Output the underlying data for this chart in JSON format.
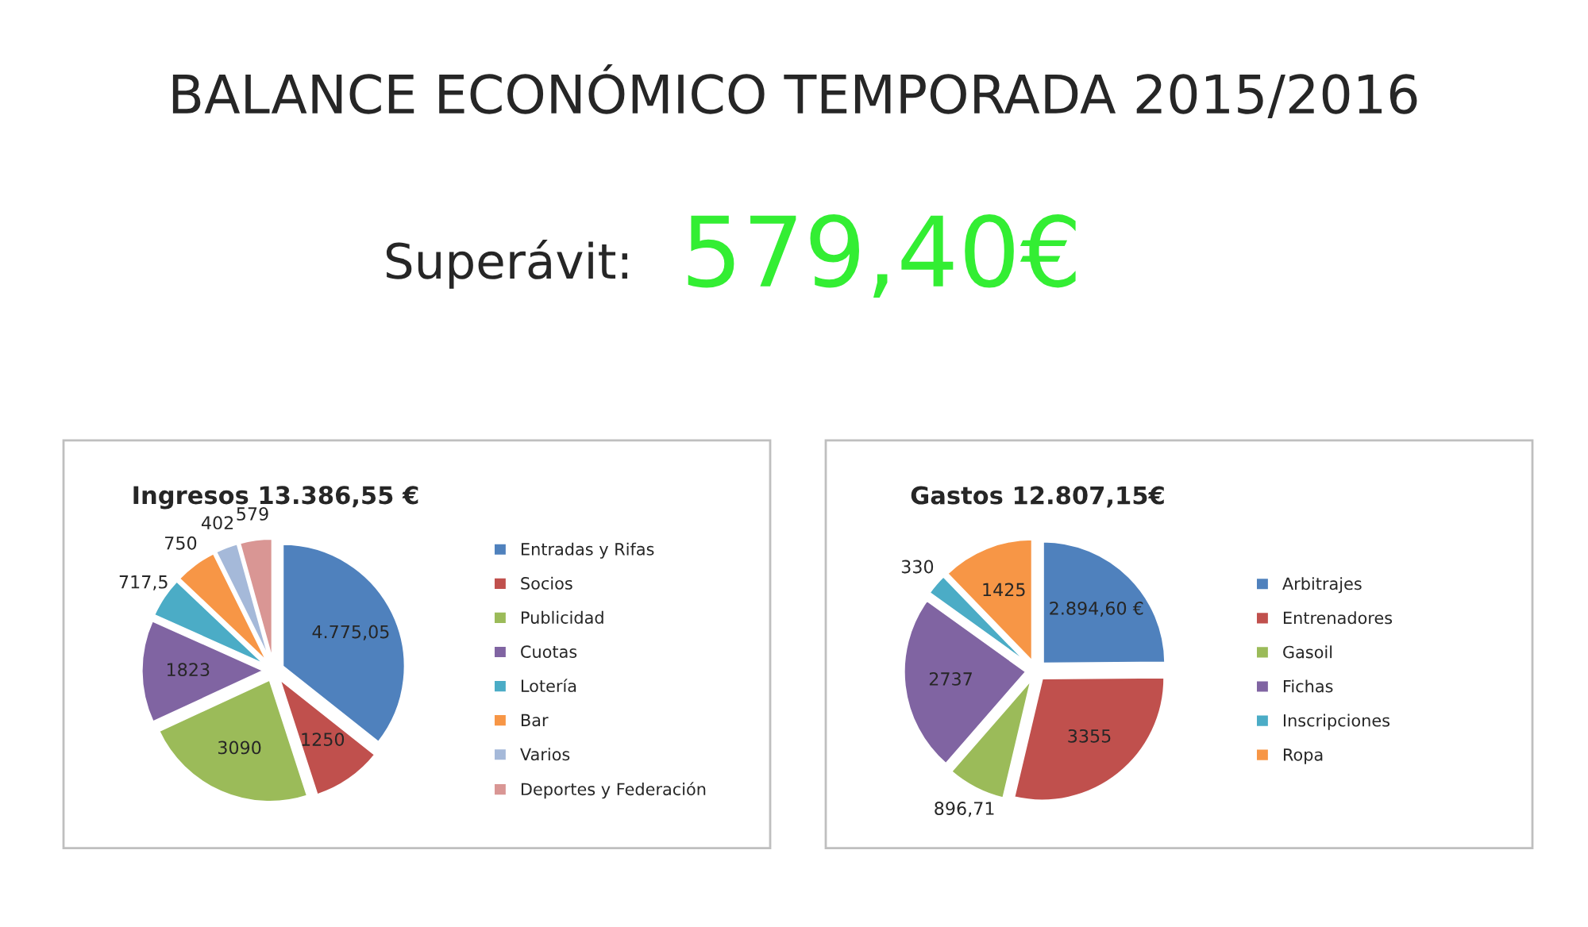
{
  "chart_data": [
    {
      "type": "pie",
      "title": "Ingresos 13.386,55 €",
      "annotations": [
        "BALANCE ECONÓMICO TEMPORADA 2015/2016",
        "Superávit:",
        "579,40€"
      ],
      "categories": [
        "Entradas y Rifas",
        "Socios",
        "Publicidad",
        "Cuotas",
        "Lotería",
        "Bar",
        "Varios",
        "Deportes y Federación"
      ],
      "values": [
        4775.05,
        1250,
        3090,
        1823,
        717.5,
        750,
        402,
        579
      ],
      "value_labels": [
        "4.775,05",
        "1250",
        "3090",
        "1823",
        "717,5",
        "750",
        "402",
        "579"
      ],
      "colors": [
        "#4f81bd",
        "#c0504d",
        "#9bbb59",
        "#8064a2",
        "#4bacc6",
        "#f79646",
        "#a5b9d9",
        "#d99694"
      ],
      "legend": "right"
    },
    {
      "type": "pie",
      "title": "Gastos 12.807,15€",
      "categories": [
        "Arbitrajes",
        "Entrenadores",
        "Gasoil",
        "Fichas",
        "Inscripciones",
        "Ropa"
      ],
      "values": [
        2894.6,
        3355,
        896.71,
        2737,
        330,
        1425
      ],
      "value_labels": [
        "2.894,60 €",
        "3355",
        "896,71",
        "2737",
        "330",
        "1425"
      ],
      "colors": [
        "#4f81bd",
        "#c0504d",
        "#9bbb59",
        "#8064a2",
        "#4bacc6",
        "#f79646"
      ],
      "legend": "right"
    }
  ]
}
